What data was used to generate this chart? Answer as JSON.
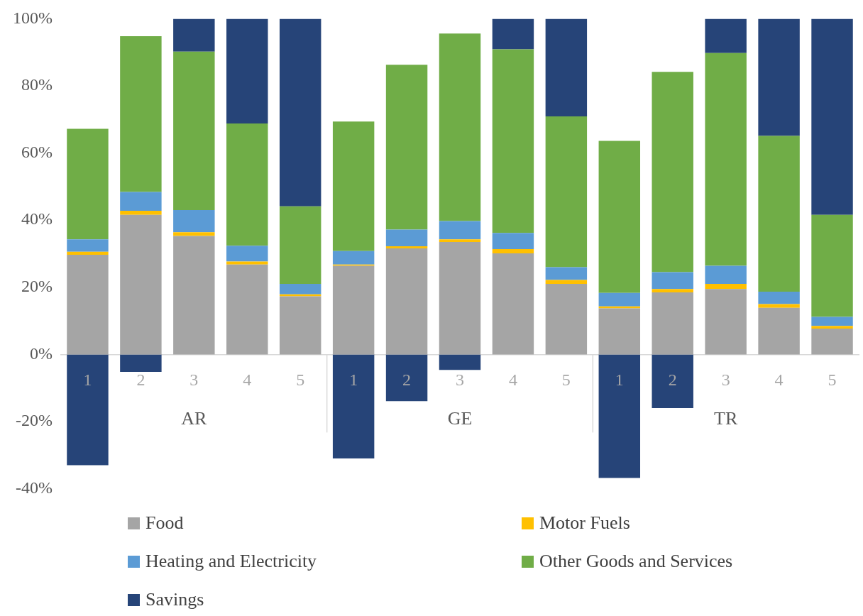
{
  "chart_data": {
    "type": "bar",
    "stacked": true,
    "categories": [
      "1",
      "2",
      "3",
      "4",
      "5",
      "1",
      "2",
      "3",
      "4",
      "5",
      "1",
      "2",
      "3",
      "4",
      "5"
    ],
    "annotations": [
      "AR",
      "GE",
      "TR"
    ],
    "series": [
      {
        "name": "Food",
        "color": "#a5a5a5",
        "values": [
          29.7,
          41.6,
          35.3,
          26.8,
          17.3,
          26.4,
          31.6,
          33.5,
          30.1,
          21.0,
          13.7,
          18.5,
          19.5,
          13.9,
          7.7
        ]
      },
      {
        "name": "Motor Fuels",
        "color": "#ffc000",
        "values": [
          0.9,
          1.2,
          1.1,
          0.9,
          0.6,
          0.4,
          0.6,
          0.8,
          1.3,
          1.2,
          0.6,
          1.0,
          1.5,
          1.1,
          0.8
        ]
      },
      {
        "name": "Heating and Electricity",
        "color": "#5b9bd5",
        "values": [
          3.7,
          5.6,
          6.6,
          4.7,
          3.1,
          4.0,
          5.0,
          5.4,
          4.8,
          3.8,
          4.0,
          5.0,
          5.4,
          3.7,
          2.7
        ]
      },
      {
        "name": "Other Goods and Services",
        "color": "#70ad47",
        "values": [
          32.9,
          46.4,
          47.2,
          36.4,
          23.1,
          38.6,
          49.1,
          55.9,
          54.7,
          44.9,
          45.3,
          59.7,
          63.4,
          46.4,
          30.4
        ]
      },
      {
        "name": "Savings",
        "color": "#264478",
        "values": [
          -33.0,
          -5.2,
          9.8,
          31.2,
          55.9,
          -31.0,
          -13.9,
          -4.6,
          9.1,
          29.1,
          -36.8,
          -16.0,
          10.2,
          34.9,
          58.4
        ]
      }
    ],
    "ylim": [
      -40,
      100
    ],
    "yticks": [
      {
        "value": -40,
        "label": "-40%"
      },
      {
        "value": -20,
        "label": "-20%"
      },
      {
        "value": 0,
        "label": "0%"
      },
      {
        "value": 20,
        "label": "20%"
      },
      {
        "value": 40,
        "label": "40%"
      },
      {
        "value": 60,
        "label": "60%"
      },
      {
        "value": 80,
        "label": "80%"
      },
      {
        "value": 100,
        "label": "100%"
      }
    ],
    "grid": false,
    "legend": "bottom"
  }
}
